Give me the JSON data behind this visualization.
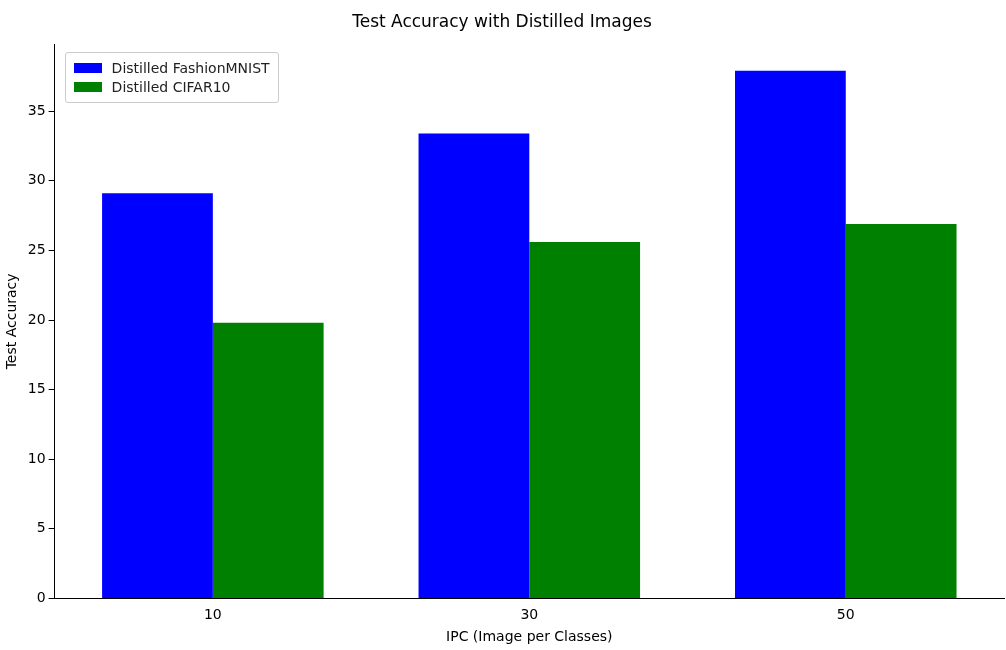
{
  "chart_data": {
    "type": "bar",
    "title": "Test Accuracy with Distilled Images",
    "xlabel": "IPC (Image per Classes)",
    "ylabel": "Test Accuracy",
    "categories": [
      "10",
      "30",
      "50"
    ],
    "series": [
      {
        "name": "Distilled FashionMNIST",
        "color": "#0000ff",
        "values": [
          29.1,
          33.4,
          37.9
        ]
      },
      {
        "name": "Distilled CIFAR10",
        "color": "#008000",
        "values": [
          19.8,
          25.6,
          26.9
        ]
      }
    ],
    "ylim": [
      0,
      39.8
    ],
    "yticks": [
      0,
      5,
      10,
      15,
      20,
      25,
      30,
      35
    ],
    "grid": false,
    "legend": "top left"
  }
}
